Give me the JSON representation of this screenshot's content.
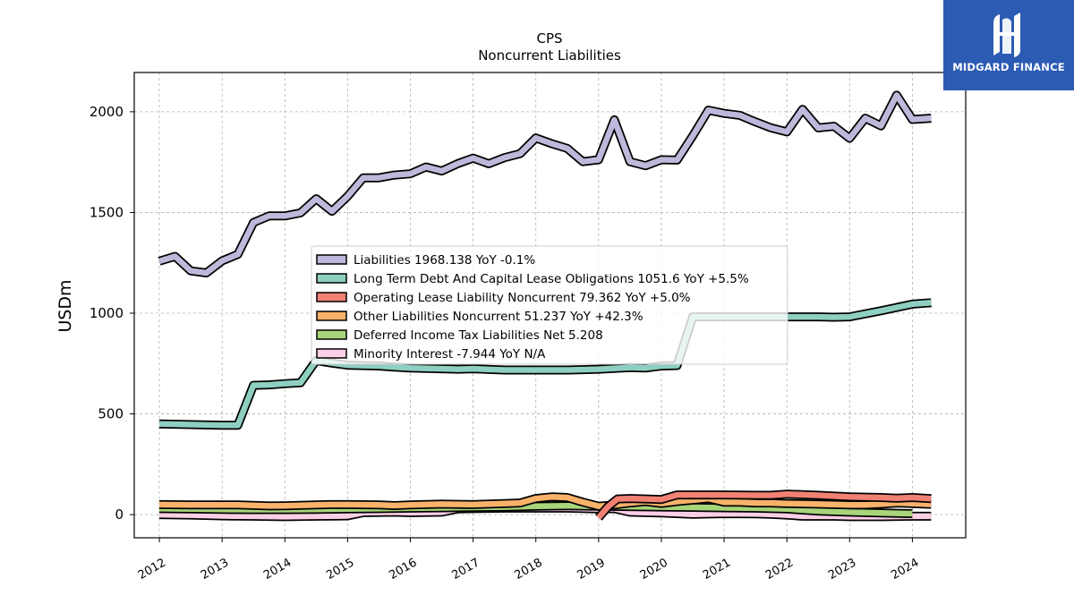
{
  "brand": {
    "name": "MIDGARD FINANCE",
    "bg_color": "#2c5bb3"
  },
  "chart_data": {
    "type": "line",
    "title": "CPS",
    "subtitle": "Noncurrent  Liabilities",
    "xlabel": "",
    "ylabel": "USDm",
    "xlim": [
      2011.6,
      2024.85
    ],
    "ylim": [
      -115,
      2195
    ],
    "yticks": [
      0,
      500,
      1000,
      1500,
      2000
    ],
    "xticks": [
      "2012",
      "2013",
      "2014",
      "2015",
      "2016",
      "2017",
      "2018",
      "2019",
      "2020",
      "2021",
      "2022",
      "2023",
      "2024"
    ],
    "grid": true,
    "legend_position": "center",
    "series": [
      {
        "name": "Liabilities",
        "legend": "Liabilities  1968.138 YoY -0.1%",
        "color": "#bcb9da",
        "points": [
          [
            2012.0,
            1258
          ],
          [
            2012.25,
            1282
          ],
          [
            2012.5,
            1210
          ],
          [
            2012.75,
            1200
          ],
          [
            2013.0,
            1260
          ],
          [
            2013.25,
            1292
          ],
          [
            2013.5,
            1450
          ],
          [
            2013.75,
            1483
          ],
          [
            2014.0,
            1483
          ],
          [
            2014.25,
            1498
          ],
          [
            2014.5,
            1568
          ],
          [
            2014.75,
            1506
          ],
          [
            2015.0,
            1580
          ],
          [
            2015.25,
            1672
          ],
          [
            2015.5,
            1672
          ],
          [
            2015.75,
            1686
          ],
          [
            2016.0,
            1692
          ],
          [
            2016.25,
            1726
          ],
          [
            2016.5,
            1706
          ],
          [
            2016.75,
            1742
          ],
          [
            2017.0,
            1770
          ],
          [
            2017.25,
            1742
          ],
          [
            2017.5,
            1772
          ],
          [
            2017.75,
            1792
          ],
          [
            2018.0,
            1870
          ],
          [
            2018.25,
            1842
          ],
          [
            2018.5,
            1818
          ],
          [
            2018.75,
            1752
          ],
          [
            2019.0,
            1762
          ],
          [
            2019.25,
            1960
          ],
          [
            2019.5,
            1752
          ],
          [
            2019.75,
            1732
          ],
          [
            2020.0,
            1762
          ],
          [
            2020.25,
            1760
          ],
          [
            2020.5,
            1880
          ],
          [
            2020.75,
            2008
          ],
          [
            2021.0,
            1992
          ],
          [
            2021.25,
            1982
          ],
          [
            2021.5,
            1950
          ],
          [
            2021.75,
            1920
          ],
          [
            2022.0,
            1900
          ],
          [
            2022.25,
            2012
          ],
          [
            2022.5,
            1920
          ],
          [
            2022.75,
            1928
          ],
          [
            2023.0,
            1868
          ],
          [
            2023.25,
            1968
          ],
          [
            2023.5,
            1930
          ],
          [
            2023.75,
            2082
          ],
          [
            2024.0,
            1962
          ],
          [
            2024.3,
            1968
          ]
        ]
      },
      {
        "name": "Long Term Debt And Capital Lease Obligations",
        "legend": "Long Term Debt And Capital Lease Obligations  1051.6 YoY +5.5%",
        "color": "#8ecfc0",
        "points": [
          [
            2012.0,
            450
          ],
          [
            2012.5,
            447
          ],
          [
            2013.0,
            444
          ],
          [
            2013.25,
            444
          ],
          [
            2013.5,
            642
          ],
          [
            2013.75,
            644
          ],
          [
            2014.0,
            650
          ],
          [
            2014.25,
            655
          ],
          [
            2014.5,
            765
          ],
          [
            2014.75,
            752
          ],
          [
            2015.0,
            742
          ],
          [
            2015.5,
            738
          ],
          [
            2015.75,
            732
          ],
          [
            2016.0,
            728
          ],
          [
            2016.5,
            724
          ],
          [
            2016.75,
            722
          ],
          [
            2017.0,
            724
          ],
          [
            2017.5,
            718
          ],
          [
            2018.0,
            718
          ],
          [
            2018.5,
            718
          ],
          [
            2019.0,
            722
          ],
          [
            2019.5,
            730
          ],
          [
            2019.75,
            728
          ],
          [
            2020.0,
            738
          ],
          [
            2020.25,
            740
          ],
          [
            2020.5,
            982
          ],
          [
            2021.0,
            982
          ],
          [
            2021.5,
            982
          ],
          [
            2022.0,
            982
          ],
          [
            2022.5,
            982
          ],
          [
            2022.75,
            980
          ],
          [
            2023.0,
            982
          ],
          [
            2023.5,
            1012
          ],
          [
            2024.0,
            1045
          ],
          [
            2024.3,
            1052
          ]
        ]
      },
      {
        "name": "Operating Lease Liability Noncurrent",
        "legend": "Operating Lease Liability Noncurrent  79.362 YoY +5.0%",
        "color": "#f08173",
        "points": [
          [
            2019.0,
            -15
          ],
          [
            2019.15,
            40
          ],
          [
            2019.3,
            78
          ],
          [
            2019.5,
            80
          ],
          [
            2019.75,
            78
          ],
          [
            2020.0,
            75
          ],
          [
            2020.25,
            98
          ],
          [
            2020.5,
            98
          ],
          [
            2021.0,
            98
          ],
          [
            2021.5,
            96
          ],
          [
            2021.75,
            96
          ],
          [
            2022.0,
            102
          ],
          [
            2022.5,
            96
          ],
          [
            2022.75,
            92
          ],
          [
            2023.0,
            88
          ],
          [
            2023.5,
            85
          ],
          [
            2023.75,
            82
          ],
          [
            2024.0,
            85
          ],
          [
            2024.3,
            79
          ]
        ]
      },
      {
        "name": "Other Liabilities Noncurrent",
        "legend": "Other Liabilities Noncurrent  51.237 YoY +42.3%",
        "color": "#f8b26a",
        "points": [
          [
            2012.0,
            50
          ],
          [
            2012.5,
            48
          ],
          [
            2013.0,
            48
          ],
          [
            2013.25,
            48
          ],
          [
            2013.75,
            43
          ],
          [
            2014.0,
            44
          ],
          [
            2014.25,
            46
          ],
          [
            2014.5,
            48
          ],
          [
            2014.75,
            50
          ],
          [
            2015.0,
            50
          ],
          [
            2015.5,
            48
          ],
          [
            2015.75,
            45
          ],
          [
            2016.0,
            48
          ],
          [
            2016.5,
            52
          ],
          [
            2017.0,
            50
          ],
          [
            2017.5,
            55
          ],
          [
            2017.75,
            58
          ],
          [
            2018.0,
            80
          ],
          [
            2018.25,
            88
          ],
          [
            2018.5,
            85
          ],
          [
            2018.75,
            62
          ],
          [
            2019.0,
            42
          ],
          [
            2019.25,
            48
          ],
          [
            2019.5,
            58
          ],
          [
            2019.75,
            65
          ],
          [
            2020.0,
            55
          ],
          [
            2020.25,
            65
          ],
          [
            2020.5,
            72
          ],
          [
            2020.75,
            80
          ],
          [
            2021.0,
            62
          ],
          [
            2021.25,
            62
          ],
          [
            2021.5,
            58
          ],
          [
            2021.75,
            58
          ],
          [
            2022.0,
            55
          ],
          [
            2022.5,
            52
          ],
          [
            2023.0,
            48
          ],
          [
            2023.25,
            48
          ],
          [
            2023.5,
            52
          ],
          [
            2023.75,
            58
          ],
          [
            2024.0,
            55
          ],
          [
            2024.3,
            51
          ]
        ]
      },
      {
        "name": "Deferred Income Tax Liabilities Net",
        "legend": "Deferred Income Tax Liabilities Net  5.208",
        "color": "#a8d47a",
        "points": [
          [
            2012.0,
            30
          ],
          [
            2012.5,
            28
          ],
          [
            2013.0,
            26
          ],
          [
            2013.5,
            25
          ],
          [
            2014.0,
            25
          ],
          [
            2014.5,
            26
          ],
          [
            2015.0,
            28
          ],
          [
            2015.5,
            30
          ],
          [
            2016.0,
            32
          ],
          [
            2016.5,
            34
          ],
          [
            2017.0,
            36
          ],
          [
            2017.5,
            38
          ],
          [
            2018.0,
            42
          ],
          [
            2018.5,
            44
          ],
          [
            2019.0,
            42
          ],
          [
            2019.5,
            40
          ],
          [
            2020.0,
            38
          ],
          [
            2020.5,
            36
          ],
          [
            2021.0,
            34
          ],
          [
            2021.5,
            32
          ],
          [
            2022.0,
            28
          ],
          [
            2022.5,
            18
          ],
          [
            2023.0,
            12
          ],
          [
            2023.5,
            8
          ],
          [
            2024.0,
            5
          ]
        ]
      },
      {
        "name": "Minority Interest",
        "legend": "Minority Interest  -7.944 YoY N/A",
        "color": "#fbcfe5",
        "points": [
          [
            2012.0,
            0
          ],
          [
            2012.5,
            -2
          ],
          [
            2013.0,
            -6
          ],
          [
            2013.5,
            -8
          ],
          [
            2014.0,
            -10
          ],
          [
            2014.5,
            -8
          ],
          [
            2015.0,
            -6
          ],
          [
            2015.25,
            10
          ],
          [
            2015.75,
            12
          ],
          [
            2016.0,
            10
          ],
          [
            2016.5,
            12
          ],
          [
            2016.75,
            28
          ],
          [
            2017.0,
            30
          ],
          [
            2017.5,
            32
          ],
          [
            2018.0,
            32
          ],
          [
            2018.5,
            32
          ],
          [
            2019.0,
            28
          ],
          [
            2019.25,
            30
          ],
          [
            2019.5,
            12
          ],
          [
            2020.0,
            8
          ],
          [
            2020.5,
            2
          ],
          [
            2021.0,
            5
          ],
          [
            2021.5,
            4
          ],
          [
            2021.75,
            2
          ],
          [
            2022.0,
            -2
          ],
          [
            2022.25,
            -8
          ],
          [
            2022.75,
            -8
          ],
          [
            2023.0,
            -10
          ],
          [
            2023.5,
            -10
          ],
          [
            2024.0,
            -8
          ],
          [
            2024.3,
            -8
          ]
        ]
      }
    ]
  }
}
